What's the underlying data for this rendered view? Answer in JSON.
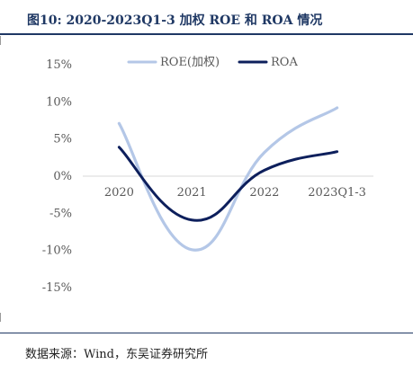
{
  "title": "图10:  2020-2023Q1-3 加权 ROE 和 ROA 情况",
  "source": "数据来源：Wind，东吴证券研究所",
  "chart_data": {
    "type": "line",
    "categories": [
      "2020",
      "2021",
      "2022",
      "2023Q1-3"
    ],
    "series": [
      {
        "name": "ROE(加权)",
        "values": [
          7.1,
          -9.9,
          3.2,
          9.2
        ],
        "color": "#b4c7e7"
      },
      {
        "name": "ROA",
        "values": [
          3.9,
          -5.9,
          0.8,
          3.3
        ],
        "color": "#0d1f5c"
      }
    ],
    "yticks": [
      "15%",
      "10%",
      "5%",
      "0%",
      "-5%",
      "-10%",
      "-15%"
    ],
    "ylim": [
      -15,
      15
    ],
    "grid": false,
    "legend": "top",
    "smooth": true
  }
}
